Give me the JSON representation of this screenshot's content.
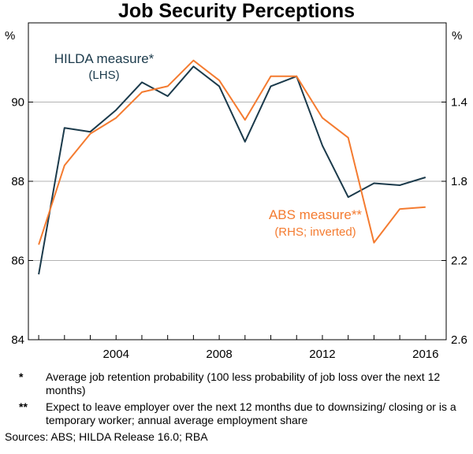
{
  "chart_data": {
    "type": "line",
    "title": "Job Security Perceptions",
    "left_axis_unit": "%",
    "right_axis_unit": "%",
    "x_range": [
      2000.6,
      2016.8
    ],
    "x_ticks": [
      2004,
      2008,
      2012,
      2016
    ],
    "x_tick_labels": [
      "2004",
      "2008",
      "2012",
      "2016"
    ],
    "left_ylim": [
      84,
      92
    ],
    "left_ticks": [
      84,
      86,
      88,
      90
    ],
    "left_tick_labels": [
      "84",
      "86",
      "88",
      "90"
    ],
    "right_ylim": [
      2.6,
      1.0
    ],
    "right_inverted": true,
    "right_ticks": [
      2.6,
      2.2,
      1.8,
      1.4
    ],
    "right_tick_labels": [
      "2.6",
      "2.2",
      "1.8",
      "1.4"
    ],
    "grid": "horizontal",
    "series": [
      {
        "name": "HILDA measure*",
        "sublabel": "(LHS)",
        "axis": "left",
        "color": "#1b3a4b",
        "x": [
          2001,
          2002,
          2003,
          2004,
          2005,
          2006,
          2007,
          2008,
          2009,
          2010,
          2011,
          2012,
          2013,
          2014,
          2015,
          2016
        ],
        "values": [
          85.65,
          89.35,
          89.25,
          89.8,
          90.5,
          90.15,
          90.9,
          90.4,
          89.0,
          90.4,
          90.65,
          88.9,
          87.6,
          87.95,
          87.9,
          88.1
        ]
      },
      {
        "name": "ABS measure**",
        "sublabel": "(RHS; inverted)",
        "axis": "right",
        "color": "#f47b30",
        "x": [
          2001,
          2002,
          2003,
          2004,
          2005,
          2006,
          2007,
          2008,
          2009,
          2010,
          2011,
          2012,
          2013,
          2014,
          2015,
          2016
        ],
        "values": [
          2.12,
          1.72,
          1.56,
          1.48,
          1.35,
          1.32,
          1.19,
          1.29,
          1.49,
          1.27,
          1.27,
          1.48,
          1.58,
          2.11,
          1.94,
          1.93
        ]
      }
    ]
  },
  "notes": [
    {
      "marker": "*",
      "text": "Average job retention probability (100 less probability of job loss over the next 12 months)"
    },
    {
      "marker": "**",
      "text": "Expect to leave employer over the next 12 months due to downsizing/ closing or is a temporary worker; annual average employment share"
    }
  ],
  "sources": "Sources: ABS; HILDA Release 16.0; RBA"
}
